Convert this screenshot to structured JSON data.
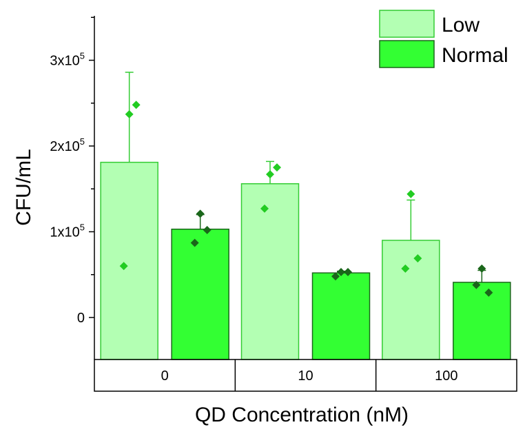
{
  "chart_data": {
    "type": "bar",
    "title": "",
    "xlabel": "QD Concentration (nM)",
    "ylabel": "CFU/mL",
    "categories": [
      "0",
      "10",
      "100"
    ],
    "ylim": [
      -50000,
      350000
    ],
    "yticks": [
      {
        "value": 0,
        "label": "0",
        "exp": ""
      },
      {
        "value": 100000,
        "label": "1x10",
        "exp": "5"
      },
      {
        "value": 200000,
        "label": "2x10",
        "exp": "5"
      },
      {
        "value": 300000,
        "label": "3x10",
        "exp": "5"
      }
    ],
    "legend_position": "top-right",
    "series": [
      {
        "name": "Low",
        "fill": "#b3ffb3",
        "stroke": "#33cc33",
        "point_color": "#22cc22",
        "values": [
          181000,
          156000,
          90000
        ],
        "error": [
          105000,
          26000,
          47000
        ],
        "points": [
          [
            237000,
            248000,
            60000
          ],
          [
            167000,
            175000,
            127000
          ],
          [
            144000,
            69000,
            57000
          ]
        ]
      },
      {
        "name": "Normal",
        "fill": "#33ff33",
        "stroke": "#1a661a",
        "point_color": "#1a661a",
        "values": [
          103000,
          52000,
          41000
        ],
        "error": [
          17000,
          2000,
          14000
        ],
        "points": [
          [
            121000,
            102000,
            87000
          ],
          [
            53000,
            53000,
            48000
          ],
          [
            57000,
            29000,
            38000
          ]
        ]
      }
    ]
  }
}
